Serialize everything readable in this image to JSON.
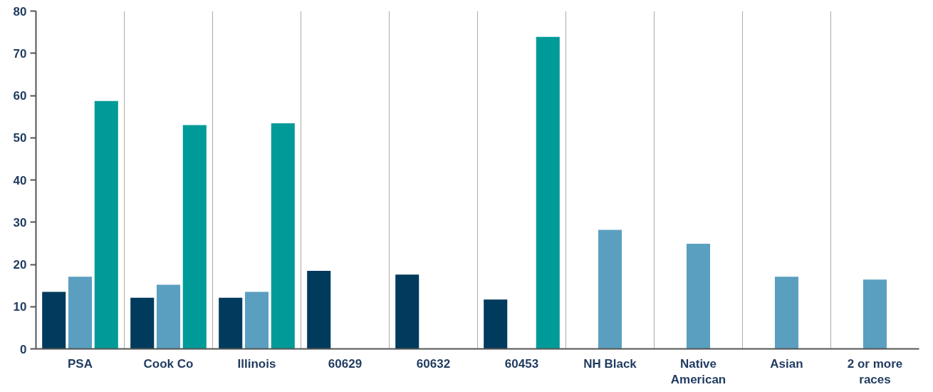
{
  "chart_data": {
    "type": "bar",
    "categories": [
      "PSA",
      "Cook Co",
      "Illinois",
      "60629",
      "60632",
      "60453",
      "NH Black",
      "Native\nAmerican",
      "Asian",
      "2 or more\nraces"
    ],
    "series": [
      {
        "color": "#003a5d",
        "values": [
          13.5,
          12.1,
          12.1,
          18.5,
          17.6,
          11.7,
          null,
          null,
          null,
          null
        ]
      },
      {
        "color": "#5b9fc0",
        "values": [
          17.1,
          15.2,
          13.5,
          null,
          null,
          null,
          28.2,
          24.9,
          17.1,
          16.4
        ]
      },
      {
        "color": "#009a98",
        "values": [
          58.7,
          53.0,
          53.4,
          null,
          null,
          73.9,
          null,
          null,
          null,
          null
        ]
      }
    ],
    "ylim": [
      0,
      80
    ],
    "yticks": [
      0,
      10,
      20,
      30,
      40,
      50,
      60,
      70,
      80
    ],
    "grid": "x"
  }
}
